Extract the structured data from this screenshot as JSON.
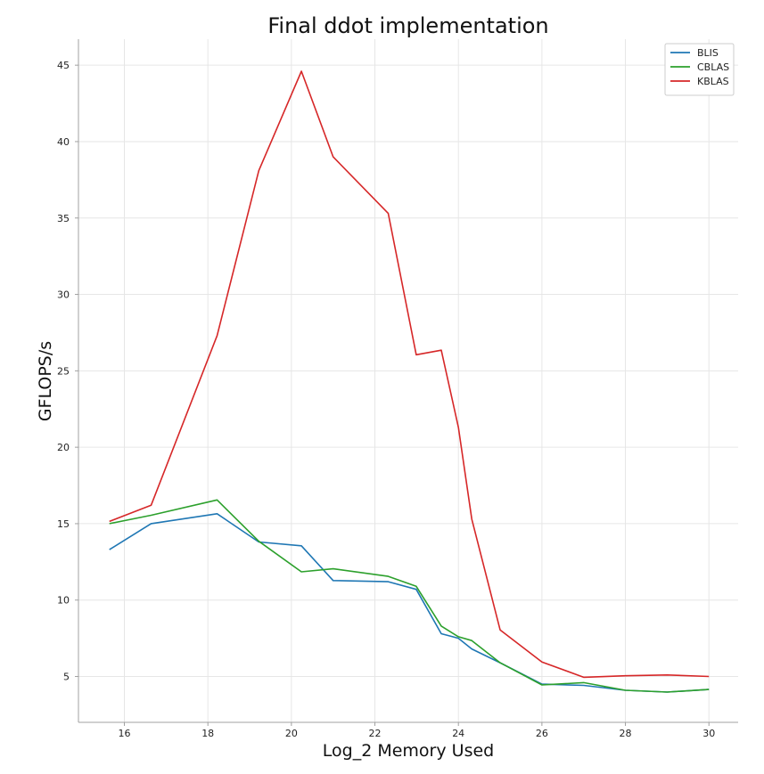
{
  "chart_data": {
    "type": "line",
    "title": "Final ddot implementation",
    "xlabel": "Log_2 Memory Used",
    "ylabel": "GFLOPS/s",
    "xlim": [
      14.9,
      30.7
    ],
    "ylim": [
      2.0,
      46.7
    ],
    "xticks": [
      16,
      18,
      20,
      22,
      24,
      26,
      28,
      30
    ],
    "yticks": [
      5,
      10,
      15,
      20,
      25,
      30,
      35,
      40,
      45
    ],
    "grid": true,
    "legend_position": "top-right",
    "series": [
      {
        "name": "BLIS",
        "color": "#1f77b4",
        "x": [
          15.64,
          16.64,
          18.22,
          19.22,
          20.24,
          21.0,
          22.32,
          22.99,
          23.59,
          24.0,
          24.32,
          25.0,
          26.0,
          27.0,
          28.0,
          29.0,
          30.0
        ],
        "y": [
          13.3,
          15.0,
          15.65,
          13.8,
          13.55,
          11.28,
          11.2,
          10.7,
          7.8,
          7.5,
          6.8,
          5.9,
          4.5,
          4.42,
          4.1,
          3.98,
          4.15
        ]
      },
      {
        "name": "CBLAS",
        "color": "#2ca02c",
        "x": [
          15.64,
          16.64,
          18.22,
          19.22,
          20.24,
          21.0,
          22.32,
          22.99,
          23.59,
          24.0,
          24.32,
          25.0,
          26.0,
          27.0,
          28.0,
          29.0,
          30.0
        ],
        "y": [
          15.0,
          15.55,
          16.55,
          13.85,
          11.85,
          12.05,
          11.55,
          10.9,
          8.3,
          7.6,
          7.35,
          5.9,
          4.45,
          4.6,
          4.1,
          3.98,
          4.15
        ]
      },
      {
        "name": "KBLAS",
        "color": "#d62728",
        "x": [
          15.64,
          16.64,
          18.22,
          19.22,
          20.24,
          21.0,
          22.32,
          22.99,
          23.59,
          24.0,
          24.32,
          25.0,
          26.0,
          27.0,
          28.0,
          29.0,
          30.0
        ],
        "y": [
          15.15,
          16.2,
          27.3,
          38.1,
          44.6,
          39.0,
          35.3,
          26.05,
          26.35,
          21.3,
          15.3,
          8.05,
          5.95,
          4.95,
          5.05,
          5.1,
          5.0
        ]
      }
    ]
  }
}
